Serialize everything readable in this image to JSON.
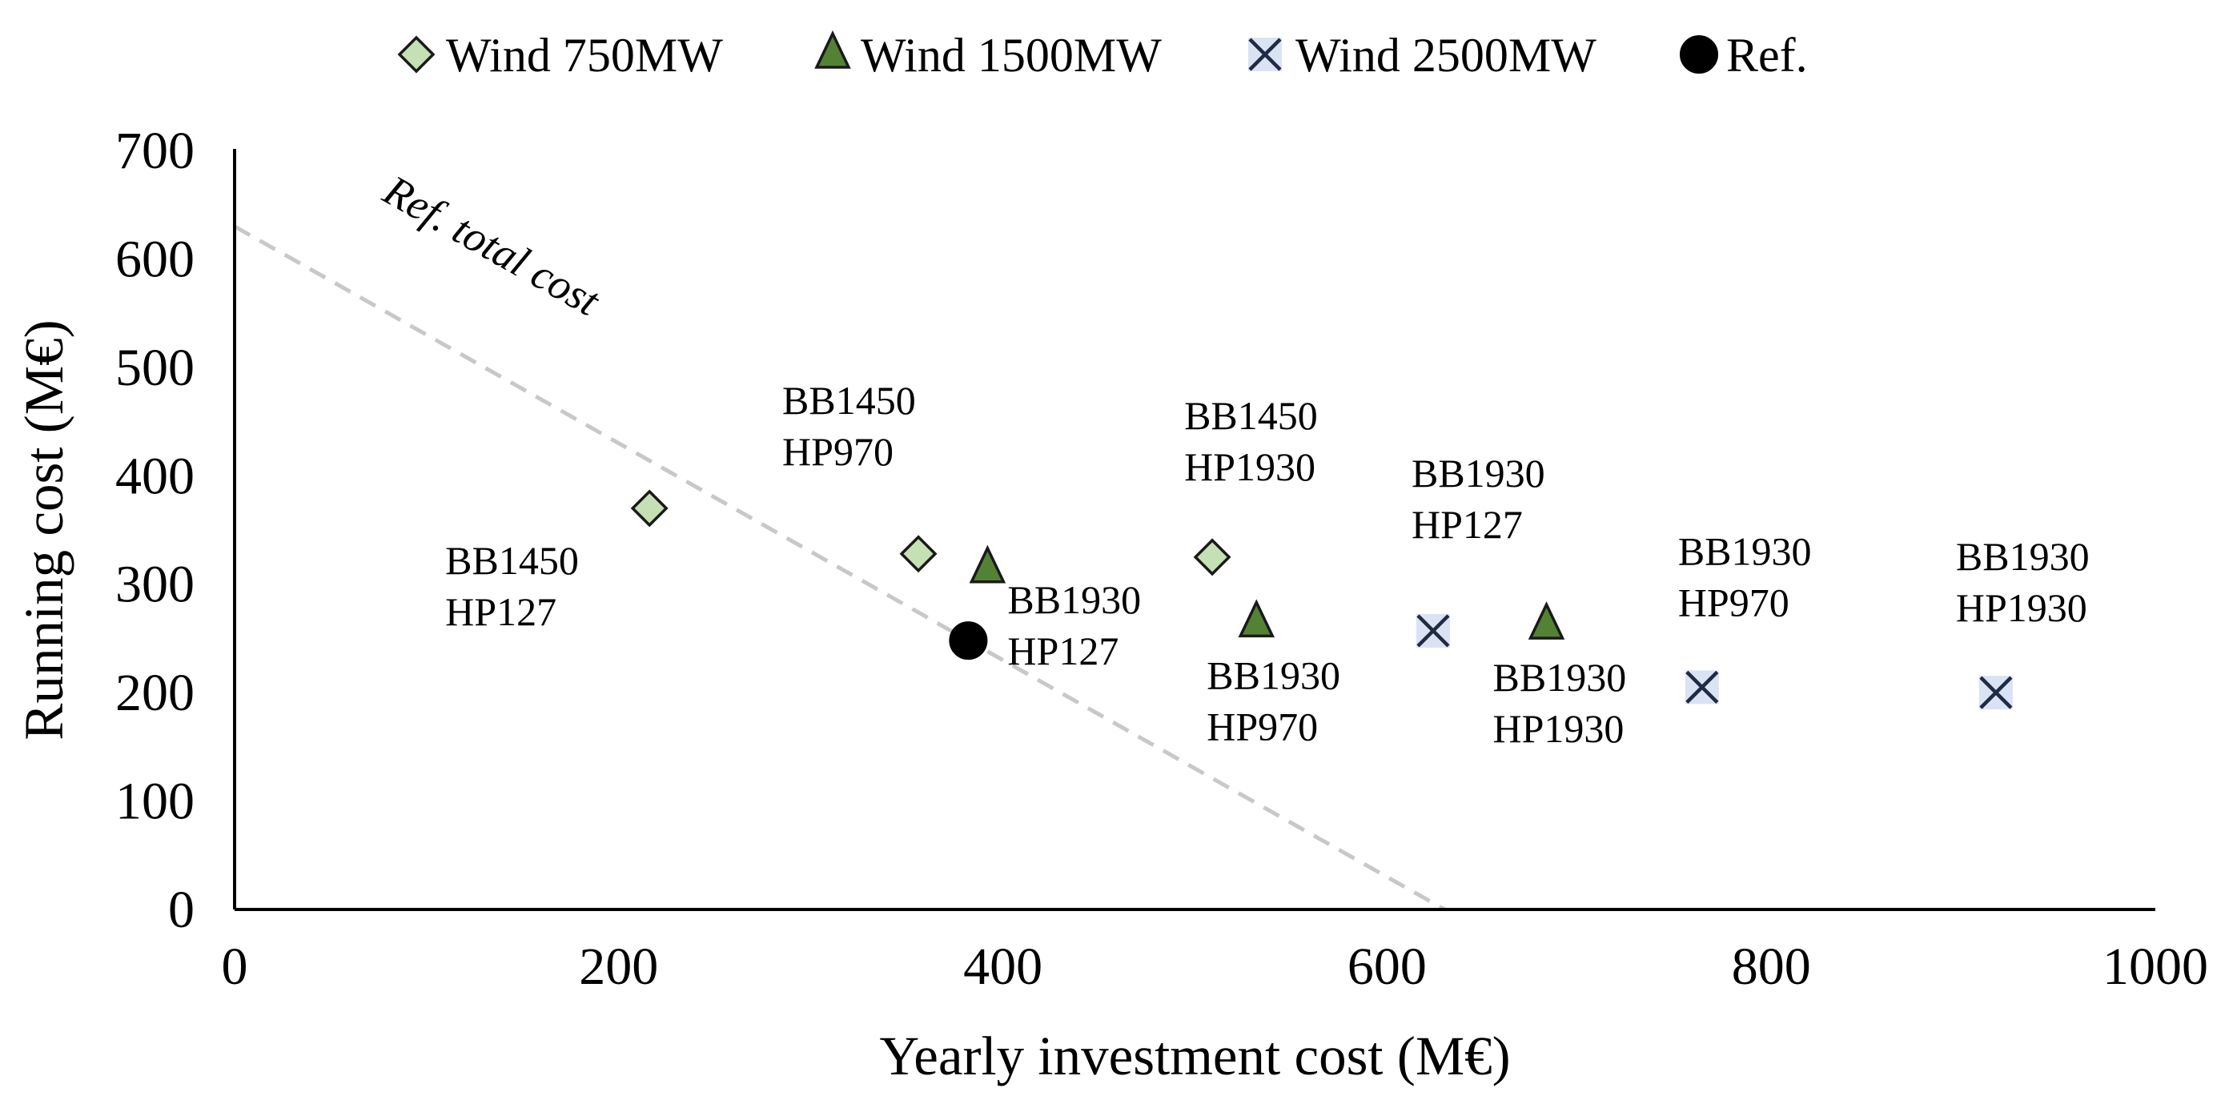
{
  "chart_data": {
    "type": "scatter",
    "title": "",
    "xlabel": "Yearly investment cost (M€)",
    "ylabel": "Running cost (M€)",
    "xlim": [
      0,
      1000
    ],
    "ylim": [
      0,
      700
    ],
    "xticks": [
      "0",
      "200",
      "400",
      "600",
      "800",
      "1000"
    ],
    "yticks": [
      "0",
      "100",
      "200",
      "300",
      "400",
      "500",
      "600",
      "700"
    ],
    "grid": false,
    "legend_position": "top",
    "series": [
      {
        "name": "Wind 750MW",
        "marker": "diamond",
        "color": "#c5e0b4",
        "points": [
          {
            "x": 216,
            "y": 370,
            "label": [
              "BB1450",
              "HP127"
            ]
          },
          {
            "x": 356,
            "y": 328,
            "label": [
              "BB1450",
              "HP970"
            ]
          },
          {
            "x": 509,
            "y": 325,
            "label": [
              "BB1450",
              "HP1930"
            ]
          }
        ]
      },
      {
        "name": "Wind 1500MW",
        "marker": "triangle",
        "color": "#548235",
        "points": [
          {
            "x": 392,
            "y": 314,
            "label": [
              "BB1930",
              "HP127"
            ]
          },
          {
            "x": 532,
            "y": 264,
            "label": [
              "BB1930",
              "HP970"
            ]
          },
          {
            "x": 683,
            "y": 262,
            "label": [
              "BB1930",
              "HP1930"
            ]
          }
        ]
      },
      {
        "name": "Wind 2500MW",
        "marker": "x",
        "color": "#dae3f3",
        "points": [
          {
            "x": 624,
            "y": 257,
            "label": [
              "BB1930",
              "HP127"
            ]
          },
          {
            "x": 764,
            "y": 205,
            "label": [
              "BB1930",
              "HP970"
            ]
          },
          {
            "x": 917,
            "y": 200,
            "label": [
              "BB1930",
              "HP1930"
            ]
          }
        ]
      },
      {
        "name": "Ref.",
        "marker": "circle",
        "color": "#000000",
        "points": [
          {
            "x": 382,
            "y": 248
          }
        ]
      }
    ],
    "annotations": [
      {
        "type": "line",
        "name": "Ref. total cost",
        "from": [
          0,
          630
        ],
        "to": [
          630,
          0
        ],
        "style": "dashed",
        "color": "#c8c8c8"
      }
    ]
  },
  "colors": {
    "axis": "#000000",
    "ref_line": "#c8c8c8",
    "marker_outline": "#1a1a1a"
  }
}
